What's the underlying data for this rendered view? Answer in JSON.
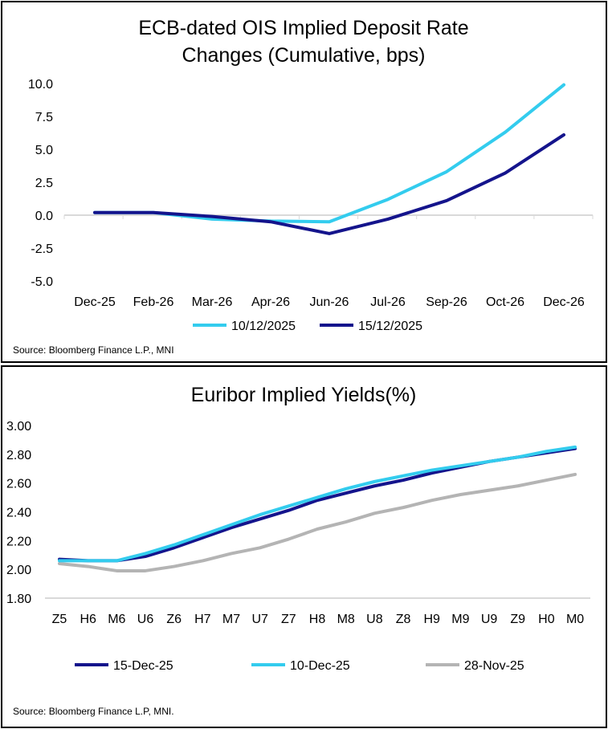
{
  "chart_data": [
    {
      "type": "line",
      "title": "ECB-dated OIS Implied Deposit Rate Changes (Cumulative, bps)",
      "title_lines": [
        "ECB-dated OIS Implied Deposit Rate",
        "Changes (Cumulative, bps)"
      ],
      "categories": [
        "Dec-25",
        "Feb-26",
        "Mar-26",
        "Apr-26",
        "Jun-26",
        "Jul-26",
        "Sep-26",
        "Oct-26",
        "Dec-26"
      ],
      "ylim": [
        -5,
        10
      ],
      "yticks": [
        "10.0",
        "7.5",
        "5.0",
        "2.5",
        "0.0",
        "-2.5",
        "-5.0"
      ],
      "ytick_values": [
        10,
        7.5,
        5,
        2.5,
        0,
        -2.5,
        -5
      ],
      "series": [
        {
          "name": "10/12/2025",
          "color": "#33CCEE",
          "values": [
            0.2,
            0.2,
            -0.3,
            -0.45,
            -0.5,
            1.2,
            3.3,
            6.3,
            9.9
          ]
        },
        {
          "name": "15/12/2025",
          "color": "#14148C",
          "values": [
            0.2,
            0.2,
            -0.1,
            -0.5,
            -1.4,
            -0.3,
            1.1,
            3.2,
            6.1
          ]
        }
      ],
      "legend": "bottom",
      "grid": false,
      "source": "Source: Bloomberg Finance L.P., MNI"
    },
    {
      "type": "line",
      "title": "Euribor Implied Yields(%)",
      "categories": [
        "Z5",
        "H6",
        "M6",
        "U6",
        "Z6",
        "H7",
        "M7",
        "U7",
        "Z7",
        "H8",
        "M8",
        "U8",
        "Z8",
        "H9",
        "M9",
        "U9",
        "Z9",
        "H0",
        "M0"
      ],
      "ylim": [
        1.8,
        3.0
      ],
      "yticks": [
        "3.00",
        "2.80",
        "2.60",
        "2.40",
        "2.20",
        "2.00",
        "1.80"
      ],
      "ytick_values": [
        3,
        2.8,
        2.6,
        2.4,
        2.2,
        2.0,
        1.8
      ],
      "series": [
        {
          "name": "15-Dec-25",
          "color": "#14148C",
          "values": [
            2.07,
            2.06,
            2.06,
            2.09,
            2.15,
            2.22,
            2.29,
            2.35,
            2.41,
            2.48,
            2.53,
            2.58,
            2.62,
            2.67,
            2.71,
            2.75,
            2.78,
            2.81,
            2.84
          ]
        },
        {
          "name": "10-Dec-25",
          "color": "#33CCEE",
          "values": [
            2.06,
            2.06,
            2.06,
            2.11,
            2.17,
            2.24,
            2.31,
            2.38,
            2.44,
            2.5,
            2.56,
            2.61,
            2.65,
            2.69,
            2.72,
            2.75,
            2.78,
            2.82,
            2.85
          ]
        },
        {
          "name": "28-Nov-25",
          "color": "#B4B4B4",
          "values": [
            2.04,
            2.02,
            1.99,
            1.99,
            2.02,
            2.06,
            2.11,
            2.15,
            2.21,
            2.28,
            2.33,
            2.39,
            2.43,
            2.48,
            2.52,
            2.55,
            2.58,
            2.62,
            2.66
          ]
        }
      ],
      "legend": "bottom",
      "grid": false,
      "source": "Source: Bloomberg Finance L.P, MNI."
    }
  ]
}
